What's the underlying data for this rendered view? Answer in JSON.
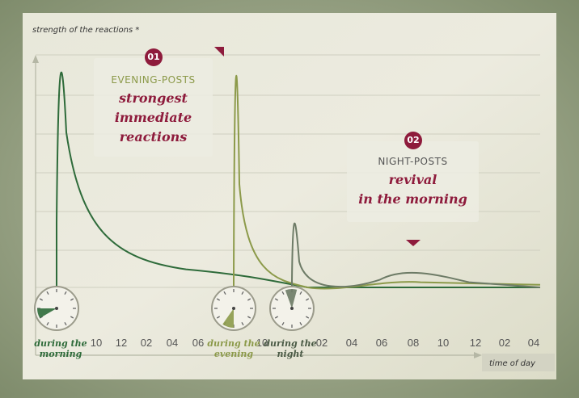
{
  "chart_data": {
    "type": "line",
    "ylabel": "strength of the reactions *",
    "xlabel": "time of day",
    "x_ticks": [
      "10",
      "12",
      "02",
      "04",
      "06",
      "08",
      "10",
      "12",
      "02",
      "04",
      "06",
      "08",
      "10",
      "12",
      "02",
      "04"
    ],
    "series": [
      {
        "color": "#2e6b3a",
        "values": [
          0,
          0.86,
          0.55,
          0.38,
          0.28,
          0.22,
          0.2,
          0.18,
          0.15,
          0.06,
          0.04,
          0.03,
          0.02,
          0.03,
          0.02,
          0.02
        ]
      },
      {
        "color": "#8c9a4a",
        "values": [
          0,
          0,
          0,
          0,
          0,
          0,
          0,
          1.0,
          0.72,
          0.35,
          0.18,
          0.1,
          0.15,
          0.08,
          0.05,
          0.03
        ]
      },
      {
        "color": "#6d7b66",
        "values": [
          0,
          0,
          0,
          0,
          0,
          0,
          0,
          0,
          0,
          0.42,
          0.08,
          0.08,
          0.22,
          0.08,
          0.04,
          0.03
        ]
      }
    ],
    "clock_labels": [
      "during the morning",
      "during the evening",
      "during the night"
    ],
    "annotations": [
      {
        "number": "01",
        "title": "EVENING-POSTS",
        "text": "strongest\nimmediate\nreactions"
      },
      {
        "number": "02",
        "title": "NIGHT-POSTS",
        "text": "revival\nin the morning"
      }
    ]
  },
  "colors": {
    "accent": "#8e1b3c",
    "morning": "#2e6b3a",
    "evening": "#8c9a4a",
    "night": "#6d7b66"
  }
}
